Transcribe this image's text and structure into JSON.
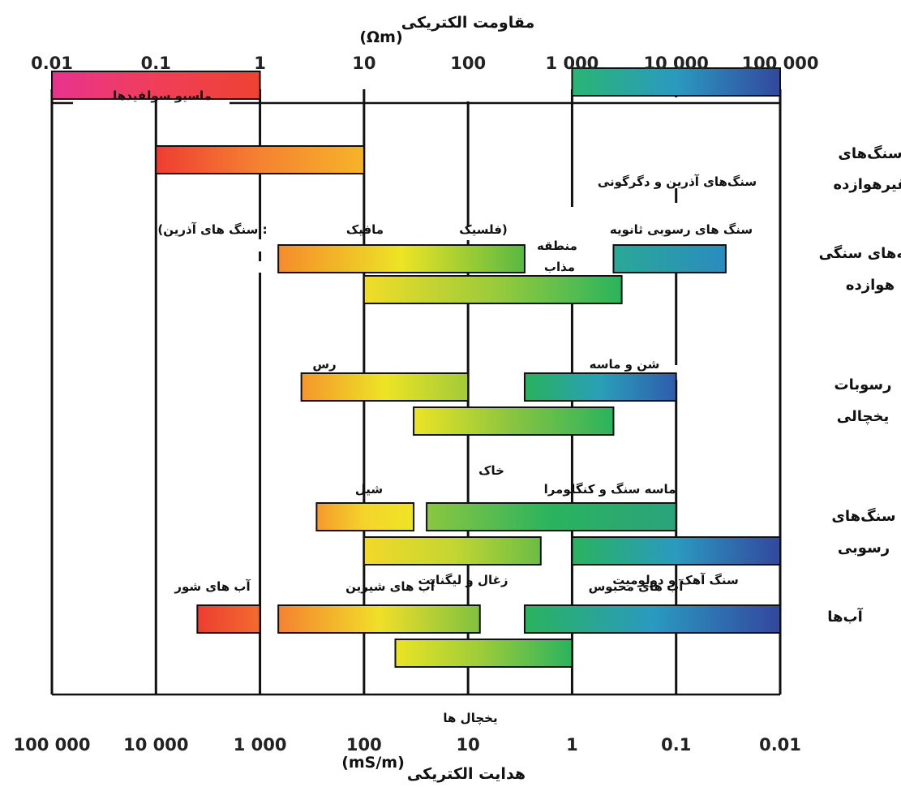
{
  "chart_data": {
    "type": "bar",
    "orientation": "horizontal-range",
    "top_axis": {
      "title": "مقاومت الکتریکی",
      "unit": "(Ωm)",
      "scale": "log",
      "range": [
        0.01,
        100000
      ],
      "ticks": [
        {
          "value": 0.01,
          "label": "0.01"
        },
        {
          "value": 0.1,
          "label": "0.1"
        },
        {
          "value": 1,
          "label": "1"
        },
        {
          "value": 10,
          "label": "10"
        },
        {
          "value": 100,
          "label": "100"
        },
        {
          "value": 1000,
          "label": "1 000"
        },
        {
          "value": 10000,
          "label": "10 000"
        },
        {
          "value": 100000,
          "label": "100 000"
        }
      ]
    },
    "bottom_axis": {
      "title": "هدایت الکتریکی",
      "unit": "(mS/m)",
      "scale": "log",
      "ticks": [
        {
          "resistivity": 0.01,
          "label": "100 000"
        },
        {
          "resistivity": 0.1,
          "label": "10 000"
        },
        {
          "resistivity": 1,
          "label": "1 000"
        },
        {
          "resistivity": 10,
          "label": "100"
        },
        {
          "resistivity": 100,
          "label": "10"
        },
        {
          "resistivity": 1000,
          "label": "1"
        },
        {
          "resistivity": 10000,
          "label": "0.1"
        },
        {
          "resistivity": 100000,
          "label": "0.01"
        }
      ]
    },
    "groups": [
      {
        "label_lines": [
          "سنگ‌های",
          "غیرهوازده"
        ]
      },
      {
        "label_lines": [
          "لایه‌های سنگی",
          "هوازده"
        ]
      },
      {
        "label_lines": [
          "رسوبات",
          "یخچالی"
        ]
      },
      {
        "label_lines": [
          "سنگ‌های",
          "رسوبی"
        ]
      },
      {
        "label_lines": [
          "آب‌ها"
        ]
      }
    ],
    "bars": [
      {
        "min": 0.01,
        "max": 1,
        "colors": [
          "#e8338e",
          "#f03e5a",
          "#ee4232"
        ]
      },
      {
        "min": 0.1,
        "max": 10,
        "colors": [
          "#ee3d32",
          "#f58231",
          "#f6b42a"
        ]
      },
      {
        "min": 1000,
        "max": 100000,
        "colors": [
          "#29b574",
          "#2a9ac0",
          "#33479e"
        ]
      },
      {
        "min": 1.5,
        "max": 350,
        "colors": [
          "#f68b2d",
          "#ede425",
          "#58b842"
        ]
      },
      {
        "min": 10,
        "max": 3000,
        "colors": [
          "#f2dd28",
          "#9ccb3a",
          "#2ab35e"
        ]
      },
      {
        "min": 2500,
        "max": 30000,
        "colors": [
          "#2aa897",
          "#2a8cc0"
        ]
      },
      {
        "min": 2.5,
        "max": 100,
        "colors": [
          "#f5962d",
          "#ede425",
          "#a2ca39"
        ]
      },
      {
        "min": 350,
        "max": 10000,
        "colors": [
          "#2ab15c",
          "#2a9fb8",
          "#2f5cae"
        ]
      },
      {
        "min": 30,
        "max": 2500,
        "colors": [
          "#ede425",
          "#88c440",
          "#2ab35e"
        ]
      },
      {
        "min": 3.5,
        "max": 30,
        "colors": [
          "#f59a2d",
          "#f4d52a",
          "#eee525"
        ]
      },
      {
        "min": 40,
        "max": 10000,
        "colors": [
          "#8cc640",
          "#2ab35e",
          "#2aa37d"
        ]
      },
      {
        "min": 10,
        "max": 500,
        "colors": [
          "#f3d929",
          "#c5d632",
          "#6bbd44"
        ]
      },
      {
        "min": 1000,
        "max": 100000,
        "colors": [
          "#2ab35e",
          "#2a9ac0",
          "#33479e"
        ]
      },
      {
        "min": 0.25,
        "max": 1,
        "colors": [
          "#ee3d32",
          "#f16c2e"
        ]
      },
      {
        "min": 1.5,
        "max": 130,
        "colors": [
          "#f58231",
          "#f1df28",
          "#7ec140"
        ]
      },
      {
        "min": 350,
        "max": 100000,
        "colors": [
          "#2ab35e",
          "#2a9ac0",
          "#33479e"
        ]
      },
      {
        "min": 20,
        "max": 1000,
        "colors": [
          "#ece425",
          "#9acb3a",
          "#2ab35e"
        ]
      }
    ],
    "annotations": [
      {
        "text": "ماسیو سولفیدها"
      },
      {
        "text": "سنگ‌های آذرین و دگرگونی"
      },
      {
        "text": ": سنگ های آذرین)"
      },
      {
        "text": "مافیک"
      },
      {
        "text": "(فلسیک"
      },
      {
        "text": "منطقه"
      },
      {
        "text": "مذاب"
      },
      {
        "text": "سنگ های رسوبی ثانویه"
      },
      {
        "text": "رس"
      },
      {
        "text": "شن و ماسه"
      },
      {
        "text": "خاک"
      },
      {
        "text": "شیل"
      },
      {
        "text": "ماسه سنگ و کنگلومرا"
      },
      {
        "text": "زغال و لیگنایت"
      },
      {
        "text": "سنگ آهک و دولومیت"
      },
      {
        "text": "آب های شور"
      },
      {
        "text": "آب های شیرین"
      },
      {
        "text": "آب های محبوس"
      },
      {
        "text": "یخچال ها"
      }
    ],
    "grid": true,
    "legend": "none"
  }
}
